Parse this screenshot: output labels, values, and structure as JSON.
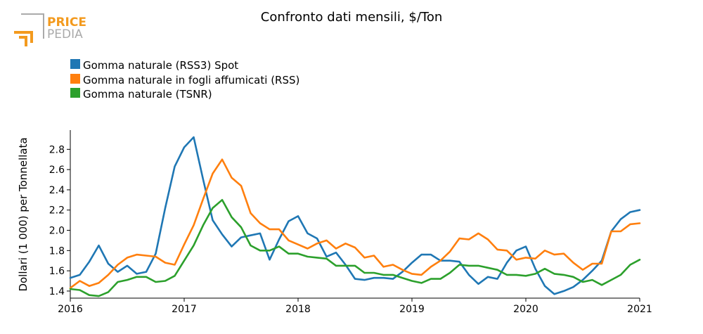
{
  "logo": {
    "price": "PRICE",
    "pedia": "PEDIA"
  },
  "colors": {
    "series1": "#1f77b4",
    "series2": "#ff7f0e",
    "series3": "#2ca02c",
    "logo_orange": "#f39a1e",
    "logo_gray": "#aaaaaa"
  },
  "chart_data": {
    "type": "line",
    "title": "Confronto dati mensili, $/Ton",
    "ylabel": "Dollari (1 000) per Tonnellata",
    "xlabel": "",
    "xlim": [
      2016.0,
      2021.0
    ],
    "ylim": [
      1.33,
      2.99
    ],
    "xticks": [
      {
        "value": 2016,
        "label": "2016"
      },
      {
        "value": 2017,
        "label": "2017"
      },
      {
        "value": 2018,
        "label": "2018"
      },
      {
        "value": 2019,
        "label": "2019"
      },
      {
        "value": 2020,
        "label": "2020"
      },
      {
        "value": 2021,
        "label": "2021"
      }
    ],
    "yticks": [
      {
        "value": 1.4,
        "label": "1.4"
      },
      {
        "value": 1.6,
        "label": "1.6"
      },
      {
        "value": 1.8,
        "label": "1.8"
      },
      {
        "value": 2.0,
        "label": "2.0"
      },
      {
        "value": 2.2,
        "label": "2.2"
      },
      {
        "value": 2.4,
        "label": "2.4"
      },
      {
        "value": 2.6,
        "label": "2.6"
      },
      {
        "value": 2.8,
        "label": "2.8"
      }
    ],
    "legend_position": "top-left",
    "grid": false,
    "x_start_year": 2016,
    "x_step": 0.083333,
    "series": [
      {
        "name": "Gomma naturale (RSS3) Spot",
        "color": "#1f77b4",
        "values": [
          1.53,
          1.56,
          1.69,
          1.85,
          1.67,
          1.59,
          1.65,
          1.57,
          1.59,
          1.77,
          2.22,
          2.63,
          2.82,
          2.92,
          2.5,
          2.1,
          1.96,
          1.84,
          1.93,
          1.95,
          1.97,
          1.71,
          1.91,
          2.09,
          2.14,
          1.97,
          1.92,
          1.74,
          1.78,
          1.66,
          1.52,
          1.51,
          1.53,
          1.53,
          1.52,
          1.59,
          1.68,
          1.76,
          1.76,
          1.7,
          1.7,
          1.69,
          1.56,
          1.47,
          1.54,
          1.52,
          1.68,
          1.8,
          1.84,
          1.62,
          1.45,
          1.37,
          1.4,
          1.44,
          1.51,
          1.6,
          1.7,
          1.99,
          2.11,
          2.18,
          2.2
        ]
      },
      {
        "name": "Gomma naturale in fogli affumicati (RSS)",
        "color": "#ff7f0e",
        "values": [
          1.43,
          1.5,
          1.45,
          1.48,
          1.56,
          1.66,
          1.73,
          1.76,
          1.75,
          1.74,
          1.68,
          1.66,
          1.86,
          2.05,
          2.31,
          2.56,
          2.7,
          2.52,
          2.44,
          2.17,
          2.07,
          2.01,
          2.01,
          1.9,
          1.86,
          1.82,
          1.87,
          1.9,
          1.82,
          1.87,
          1.83,
          1.73,
          1.75,
          1.64,
          1.66,
          1.61,
          1.57,
          1.56,
          1.64,
          1.7,
          1.79,
          1.92,
          1.91,
          1.97,
          1.91,
          1.81,
          1.8,
          1.71,
          1.73,
          1.72,
          1.8,
          1.76,
          1.77,
          1.68,
          1.61,
          1.67,
          1.67,
          1.99,
          1.99,
          2.06,
          2.07
        ]
      },
      {
        "name": "Gomma naturale (TSNR)",
        "color": "#2ca02c",
        "values": [
          1.42,
          1.41,
          1.36,
          1.35,
          1.39,
          1.49,
          1.51,
          1.54,
          1.54,
          1.49,
          1.5,
          1.55,
          1.7,
          1.85,
          2.05,
          2.22,
          2.3,
          2.13,
          2.03,
          1.85,
          1.8,
          1.8,
          1.84,
          1.77,
          1.77,
          1.74,
          1.73,
          1.72,
          1.65,
          1.65,
          1.65,
          1.58,
          1.58,
          1.56,
          1.56,
          1.53,
          1.5,
          1.48,
          1.52,
          1.52,
          1.58,
          1.66,
          1.65,
          1.65,
          1.63,
          1.61,
          1.56,
          1.56,
          1.55,
          1.57,
          1.62,
          1.57,
          1.56,
          1.54,
          1.49,
          1.51,
          1.46,
          1.51,
          1.56,
          1.66,
          1.71
        ]
      }
    ]
  }
}
